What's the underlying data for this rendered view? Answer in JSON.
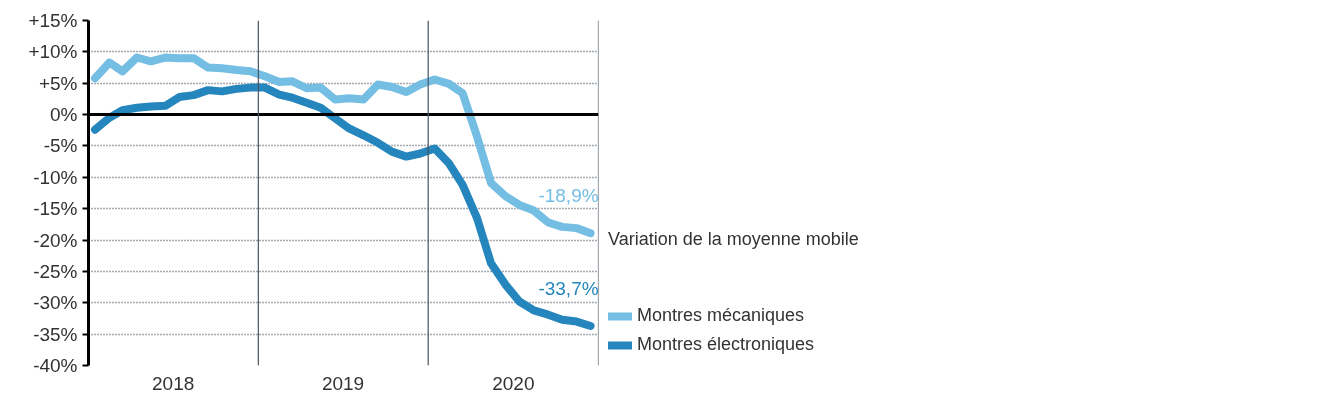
{
  "chart_data": {
    "type": "line",
    "legend_title": "Variation de la moyenne mobile",
    "legend": "right",
    "grid": "y",
    "line_style": "solid",
    "marker": "none",
    "x": [
      "2018-01-15",
      "2018-02-15",
      "2018-03-15",
      "2018-04-15",
      "2018-05-15",
      "2018-06-15",
      "2018-07-15",
      "2018-08-15",
      "2018-09-15",
      "2018-10-15",
      "2018-11-15",
      "2018-12-15",
      "2019-01-15",
      "2019-02-15",
      "2019-03-15",
      "2019-04-15",
      "2019-05-15",
      "2019-06-15",
      "2019-07-15",
      "2019-08-15",
      "2019-09-15",
      "2019-10-15",
      "2019-11-15",
      "2019-12-15",
      "2020-01-15",
      "2020-02-15",
      "2020-03-15",
      "2020-04-15",
      "2020-05-15",
      "2020-06-15",
      "2020-07-15",
      "2020-08-15",
      "2020-09-15",
      "2020-10-15",
      "2020-11-15",
      "2020-12-15"
    ],
    "series": [
      {
        "name": "Montres mécaniques",
        "color": "#74bde3",
        "values": [
          5.8,
          8.3,
          6.9,
          9.1,
          8.5,
          9.1,
          9.0,
          9.0,
          7.5,
          7.4,
          7.1,
          6.9,
          6.1,
          5.2,
          5.3,
          4.2,
          4.3,
          2.4,
          2.6,
          2.4,
          4.8,
          4.4,
          3.6,
          4.8,
          5.6,
          4.9,
          3.4,
          -3.5,
          -10.9,
          -13.0,
          -14.4,
          -15.3,
          -17.2,
          -17.9,
          -18.1,
          -18.9
        ]
      },
      {
        "name": "Montres électroniques",
        "color": "#2585bd",
        "values": [
          -2.4,
          -0.5,
          0.7,
          1.1,
          1.3,
          1.4,
          2.8,
          3.1,
          3.9,
          3.7,
          4.1,
          4.3,
          4.3,
          3.2,
          2.7,
          1.9,
          1.1,
          -0.6,
          -2.2,
          -3.3,
          -4.5,
          -5.9,
          -6.7,
          -6.2,
          -5.4,
          -7.8,
          -11.2,
          -16.5,
          -23.7,
          -27.1,
          -29.8,
          -31.2,
          -31.9,
          -32.7,
          -33.0,
          -33.7
        ]
      }
    ],
    "xlim": [
      "2018-01-01",
      "2021-01-01"
    ],
    "xticks": [
      {
        "value": "2018-07-02",
        "label": "2018"
      },
      {
        "value": "2019-07-02",
        "label": "2019"
      },
      {
        "value": "2020-07-02",
        "label": "2020"
      }
    ],
    "ylim": [
      -40,
      15
    ],
    "yticks": [
      {
        "value": 15,
        "label": "+15%"
      },
      {
        "value": 10,
        "label": "+10%"
      },
      {
        "value": 5,
        "label": "+5%"
      },
      {
        "value": 0,
        "label": "0%"
      },
      {
        "value": -5,
        "label": "-5%"
      },
      {
        "value": -10,
        "label": "-10%"
      },
      {
        "value": -15,
        "label": "-15%"
      },
      {
        "value": -20,
        "label": "-20%"
      },
      {
        "value": -25,
        "label": "-25%"
      },
      {
        "value": -30,
        "label": "-30%"
      },
      {
        "value": -35,
        "label": "-35%"
      },
      {
        "value": -40,
        "label": "-40%"
      }
    ],
    "ref_lines": [
      {
        "axis": "y",
        "value": 0,
        "color": "#000000"
      },
      {
        "axis": "x",
        "value": "2019-01-01",
        "color": "#4a5560"
      },
      {
        "axis": "x",
        "value": "2020-01-01",
        "color": "#4a5560"
      },
      {
        "axis": "x",
        "value": "2021-01-01",
        "color": "#4a5560"
      }
    ],
    "annotations": [
      {
        "text": "-18,9%",
        "x": "2020-12-15",
        "y": -18.9
      },
      {
        "text": "-33,7%",
        "x": "2020-12-15",
        "y": -33.7
      }
    ]
  }
}
